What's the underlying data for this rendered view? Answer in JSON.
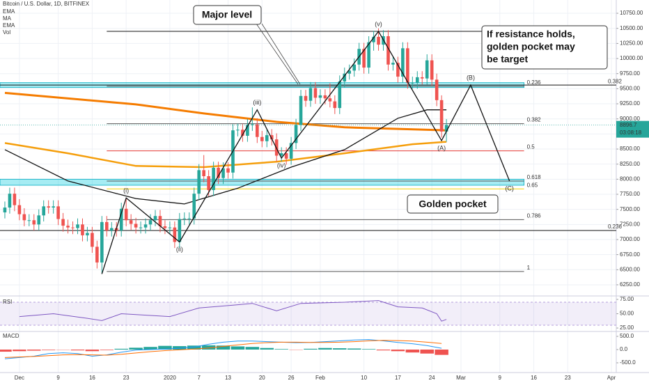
{
  "chart_data": [
    {
      "type": "candlestick",
      "title": "Bitcoin / U.S. Dollar, 1D, BITFINEX",
      "indicators": [
        "EMA",
        "MA",
        "EMA",
        "Vol"
      ],
      "x": [
        "2019-11-28",
        "2019-11-29",
        "2019-11-30",
        "2019-12-01",
        "2019-12-02",
        "2019-12-03",
        "2019-12-04",
        "2019-12-05",
        "2019-12-06",
        "2019-12-07",
        "2019-12-08",
        "2019-12-09",
        "2019-12-10",
        "2019-12-11",
        "2019-12-12",
        "2019-12-13",
        "2019-12-14",
        "2019-12-15",
        "2019-12-16",
        "2019-12-17",
        "2019-12-18",
        "2019-12-19",
        "2019-12-20",
        "2019-12-21",
        "2019-12-22",
        "2019-12-23",
        "2019-12-24",
        "2019-12-25",
        "2019-12-26",
        "2019-12-27",
        "2019-12-28",
        "2019-12-29",
        "2019-12-30",
        "2019-12-31",
        "2020-01-01",
        "2020-01-02",
        "2020-01-03",
        "2020-01-04",
        "2020-01-05",
        "2020-01-06",
        "2020-01-07",
        "2020-01-08",
        "2020-01-09",
        "2020-01-10",
        "2020-01-11",
        "2020-01-12",
        "2020-01-13",
        "2020-01-14",
        "2020-01-15",
        "2020-01-16",
        "2020-01-17",
        "2020-01-18",
        "2020-01-19",
        "2020-01-20",
        "2020-01-21",
        "2020-01-22",
        "2020-01-23",
        "2020-01-24",
        "2020-01-25",
        "2020-01-26",
        "2020-01-27",
        "2020-01-28",
        "2020-01-29",
        "2020-01-30",
        "2020-01-31",
        "2020-02-01",
        "2020-02-02",
        "2020-02-03",
        "2020-02-04",
        "2020-02-05",
        "2020-02-06",
        "2020-02-07",
        "2020-02-08",
        "2020-02-09",
        "2020-02-10",
        "2020-02-11",
        "2020-02-12",
        "2020-02-13",
        "2020-02-14",
        "2020-02-15",
        "2020-02-16",
        "2020-02-17",
        "2020-02-18",
        "2020-02-19",
        "2020-02-20",
        "2020-02-21",
        "2020-02-22",
        "2020-02-23",
        "2020-02-24",
        "2020-02-25",
        "2020-02-26",
        "2020-02-27"
      ],
      "open": [
        7450,
        7530,
        7760,
        7570,
        7420,
        7320,
        7320,
        7250,
        7400,
        7550,
        7530,
        7550,
        7340,
        7230,
        7200,
        7190,
        7250,
        7070,
        7110,
        6880,
        6620,
        7290,
        7150,
        7190,
        7150,
        7510,
        7320,
        7260,
        7200,
        7200,
        7250,
        7320,
        7390,
        7220,
        7190,
        7200,
        6960,
        7340,
        7350,
        7350,
        7760,
        8150,
        8050,
        7820,
        8190,
        8020,
        8180,
        8110,
        8810,
        8820,
        8720,
        8900,
        8910,
        8700,
        8630,
        8730,
        8660,
        8390,
        8430,
        8340,
        8600,
        8900,
        9380,
        9300,
        9510,
        9350,
        9390,
        9340,
        9290,
        9180,
        9620,
        9750,
        9800,
        9900,
        10160,
        9850,
        10270,
        10360,
        10230,
        10370,
        9900,
        9930,
        9700,
        10170,
        9600,
        9600,
        9690,
        9670,
        9970,
        9650,
        9310,
        8790
      ],
      "high": [
        7630,
        7860,
        7860,
        7670,
        7520,
        7420,
        7420,
        7500,
        7650,
        7650,
        7650,
        7650,
        7440,
        7330,
        7300,
        7350,
        7350,
        7210,
        7210,
        6980,
        7390,
        7390,
        7290,
        7290,
        7610,
        7690,
        7420,
        7360,
        7300,
        7350,
        7420,
        7490,
        7490,
        7320,
        7300,
        7300,
        7440,
        7450,
        7450,
        7860,
        8250,
        8400,
        8150,
        8290,
        8290,
        8280,
        8280,
        8910,
        8920,
        8920,
        9000,
        9190,
        9010,
        8800,
        8830,
        8830,
        8760,
        8530,
        8530,
        8700,
        9000,
        9480,
        9480,
        9610,
        9610,
        9490,
        9490,
        9590,
        9390,
        9720,
        9850,
        9900,
        10000,
        10260,
        10260,
        10370,
        10460,
        10500,
        10470,
        10470,
        10030,
        10030,
        10270,
        10270,
        9700,
        9790,
        9790,
        10070,
        10070,
        9750,
        9390,
        8997
      ],
      "low": [
        7350,
        7430,
        7470,
        7320,
        7220,
        7220,
        7150,
        7150,
        7300,
        7430,
        7430,
        7240,
        7130,
        7100,
        7090,
        7090,
        6970,
        6970,
        6780,
        6520,
        6430,
        7050,
        7050,
        7050,
        7050,
        7220,
        7160,
        7100,
        7100,
        7100,
        7150,
        7220,
        7120,
        7090,
        7090,
        6860,
        6860,
        7240,
        7250,
        7250,
        7660,
        7950,
        7720,
        7720,
        7920,
        7920,
        8010,
        8010,
        8710,
        8620,
        8620,
        8800,
        8600,
        8530,
        8530,
        8560,
        8290,
        8290,
        8240,
        8240,
        8500,
        8800,
        9200,
        9200,
        9250,
        9250,
        9240,
        9190,
        9080,
        9080,
        9520,
        9650,
        9700,
        9800,
        9750,
        9750,
        10130,
        10130,
        10130,
        9800,
        9800,
        9600,
        9600,
        9500,
        9500,
        9500,
        9570,
        9570,
        9550,
        9210,
        8690,
        8620
      ],
      "close": [
        7530,
        7760,
        7570,
        7420,
        7320,
        7320,
        7250,
        7400,
        7550,
        7530,
        7550,
        7340,
        7230,
        7200,
        7190,
        7250,
        7070,
        7110,
        6880,
        6620,
        7290,
        7150,
        7190,
        7150,
        7510,
        7320,
        7260,
        7200,
        7200,
        7250,
        7320,
        7390,
        7220,
        7190,
        7200,
        6960,
        7340,
        7350,
        7350,
        7760,
        8150,
        8050,
        7820,
        8190,
        8020,
        8180,
        8110,
        8810,
        8820,
        8720,
        8900,
        8910,
        8700,
        8630,
        8730,
        8660,
        8390,
        8430,
        8340,
        8600,
        8900,
        9380,
        9300,
        9510,
        9350,
        9390,
        9340,
        9290,
        9180,
        9620,
        9750,
        9800,
        9900,
        10160,
        9850,
        10270,
        10360,
        10230,
        10370,
        9900,
        9930,
        9700,
        10170,
        9600,
        9600,
        9690,
        9670,
        9970,
        9650,
        9310,
        8790,
        8897
      ],
      "up_color": "#26a69a",
      "down_color": "#ef5350",
      "xlim": [
        "2019-11-27",
        "2020-04-02"
      ],
      "ylim": [
        6065,
        10970
      ],
      "xticks": [
        {
          "value": "2019-12-01",
          "label": "Dec"
        },
        {
          "value": "2019-12-09",
          "label": "9"
        },
        {
          "value": "2019-12-16",
          "label": "16"
        },
        {
          "value": "2019-12-23",
          "label": "23"
        },
        {
          "value": "2020-01-01",
          "label": "2020"
        },
        {
          "value": "2020-01-07",
          "label": "7"
        },
        {
          "value": "2020-01-13",
          "label": "13"
        },
        {
          "value": "2020-01-20",
          "label": "20"
        },
        {
          "value": "2020-01-26",
          "label": "26"
        },
        {
          "value": "2020-02-01",
          "label": "Feb"
        },
        {
          "value": "2020-02-10",
          "label": "10"
        },
        {
          "value": "2020-02-17",
          "label": "17"
        },
        {
          "value": "2020-02-24",
          "label": "24"
        },
        {
          "value": "2020-03-01",
          "label": "Mar"
        },
        {
          "value": "2020-03-09",
          "label": "9"
        },
        {
          "value": "2020-03-16",
          "label": "16"
        },
        {
          "value": "2020-03-23",
          "label": "23"
        },
        {
          "value": "2020-04-01",
          "label": "Apr"
        }
      ],
      "yticks": [
        {
          "value": 10750,
          "label": "10750.00"
        },
        {
          "value": 10500,
          "label": "10500.00"
        },
        {
          "value": 10250,
          "label": "10250.00"
        },
        {
          "value": 10000,
          "label": "10000.00"
        },
        {
          "value": 9750,
          "label": "9750.00"
        },
        {
          "value": 9500,
          "label": "9500.00"
        },
        {
          "value": 9250,
          "label": "9250.00"
        },
        {
          "value": 9000,
          "label": "9000.00"
        },
        {
          "value": 8750,
          "label": "8750.00"
        },
        {
          "value": 8500,
          "label": "8500.00"
        },
        {
          "value": 8250,
          "label": "8250.00"
        },
        {
          "value": 8000,
          "label": "8000.00"
        },
        {
          "value": 7750,
          "label": "7750.00"
        },
        {
          "value": 7500,
          "label": "7500.00"
        },
        {
          "value": 7250,
          "label": "7250.00"
        },
        {
          "value": 7000,
          "label": "7000.00"
        },
        {
          "value": 6750,
          "label": "6750.00"
        },
        {
          "value": 6500,
          "label": "6500.00"
        },
        {
          "value": 6250,
          "label": "6250.00"
        }
      ],
      "grid": true,
      "overlays": [
        {
          "color": "#f57c00",
          "width": 3,
          "x": [
            "2019-11-28",
            "2019-12-25",
            "2020-01-08",
            "2020-01-23",
            "2020-02-06",
            "2020-02-27"
          ],
          "values": [
            9430,
            9240,
            9090,
            8950,
            8860,
            8810
          ]
        },
        {
          "color": "#f59e0b",
          "width": 2.5,
          "x": [
            "2019-11-28",
            "2019-12-11",
            "2019-12-25",
            "2020-01-08",
            "2020-01-23",
            "2020-02-06",
            "2020-02-20",
            "2020-02-27"
          ],
          "values": [
            8600,
            8430,
            8220,
            8200,
            8290,
            8430,
            8580,
            8620
          ]
        },
        {
          "color": "#111111",
          "width": 1.3,
          "x": [
            "2019-11-28",
            "2019-12-11",
            "2019-12-25",
            "2020-01-04",
            "2020-01-15",
            "2020-01-26",
            "2020-02-06",
            "2020-02-17",
            "2020-02-23",
            "2020-02-27"
          ],
          "values": [
            8490,
            7970,
            7680,
            7590,
            7850,
            8200,
            8490,
            9010,
            9150,
            9150
          ]
        }
      ],
      "zones": [
        {
          "from": 9520,
          "to": 9600,
          "x": [
            "2019-11-27",
            "2020-03-14"
          ]
        },
        {
          "from": 7900,
          "to": 8000,
          "x": [
            "2019-11-27",
            "2020-03-14"
          ]
        }
      ],
      "levels": [
        {
          "value": 10450,
          "color": "#111111",
          "x": [
            "2019-12-19",
            "2020-03-13"
          ]
        },
        {
          "value": 9560,
          "label": 0.382,
          "color": "#111111",
          "x": [
            "2019-11-27",
            "2020-04-02"
          ]
        },
        {
          "value": 9540,
          "label": 0.236,
          "color": "#555555",
          "x": [
            "2019-12-19",
            "2020-03-14"
          ]
        },
        {
          "value": 8920,
          "label": 0.382,
          "color": "#555555",
          "x": [
            "2019-12-19",
            "2020-03-14"
          ]
        },
        {
          "value": 8470,
          "label": 0.5,
          "color": "#e53935",
          "x": [
            "2019-12-19",
            "2020-03-14"
          ]
        },
        {
          "value": 7970,
          "label": 0.618,
          "color": "#555555",
          "x": [
            "2019-12-19",
            "2020-03-14"
          ]
        },
        {
          "value": 7840,
          "label": 0.65,
          "color": "#f5d000",
          "x": [
            "2019-12-19",
            "2020-03-14"
          ]
        },
        {
          "value": 7330,
          "label": 0.786,
          "color": "#555555",
          "x": [
            "2019-12-19",
            "2020-03-14"
          ]
        },
        {
          "value": 6470,
          "label": 1,
          "color": "#555555",
          "x": [
            "2019-12-19",
            "2020-03-14"
          ]
        },
        {
          "value": 7150,
          "label": 0.236,
          "color": "#111111",
          "x": [
            "2019-11-27",
            "2020-04-02"
          ]
        }
      ],
      "waves": [
        {
          "label": null,
          "x": "2019-12-18",
          "value": 6430
        },
        {
          "label": "(i)",
          "x": "2019-12-23",
          "value": 7690
        },
        {
          "label": "(ii)",
          "x": "2020-01-03",
          "value": 6960
        },
        {
          "label": "(iii)",
          "x": "2020-01-19",
          "value": 9150
        },
        {
          "label": "(iv)",
          "x": "2020-01-24",
          "value": 8350
        },
        {
          "label": "(v)",
          "x": "2020-02-13",
          "value": 10450
        },
        {
          "label": "(A)",
          "x": "2020-02-26",
          "value": 8640
        },
        {
          "label": "(B)",
          "x": "2020-03-03",
          "value": 9560
        },
        {
          "label": "(C)",
          "x": "2020-03-11",
          "value": 7970
        }
      ],
      "annotations": {
        "major": "Major level",
        "target": [
          "If resistance holds,",
          "golden pocket may",
          "be target"
        ],
        "pocket": "Golden pocket"
      },
      "last_price": 8896.7,
      "countdown": "03:08:18",
      "last_color": "#26a69a"
    },
    {
      "type": "line",
      "title": "RSI",
      "color": "#7e57c2",
      "x": [
        "2019-12-01",
        "2019-12-08",
        "2019-12-15",
        "2019-12-18",
        "2019-12-22",
        "2020-01-01",
        "2020-01-07",
        "2020-01-14",
        "2020-01-18",
        "2020-01-23",
        "2020-01-28",
        "2020-02-06",
        "2020-02-13",
        "2020-02-17",
        "2020-02-22",
        "2020-02-25",
        "2020-02-26",
        "2020-02-27"
      ],
      "values": [
        45,
        50,
        42,
        38,
        50,
        45,
        60,
        65,
        68,
        55,
        68,
        70,
        73,
        62,
        60,
        50,
        37,
        40
      ],
      "band": [
        30,
        70
      ],
      "ylim": [
        19,
        81
      ],
      "yticks": [
        {
          "value": 75,
          "label": "75.00"
        },
        {
          "value": 50,
          "label": "50.00"
        },
        {
          "value": 25,
          "label": "25.00"
        }
      ]
    },
    {
      "type": "bar",
      "title": "MACD",
      "up_color": "#26a69a",
      "down_color": "#ef5350",
      "x": [
        "2019-11-28",
        "2019-12-01",
        "2019-12-04",
        "2019-12-07",
        "2019-12-10",
        "2019-12-13",
        "2019-12-16",
        "2019-12-19",
        "2019-12-22",
        "2019-12-25",
        "2019-12-28",
        "2019-12-31",
        "2020-01-03",
        "2020-01-06",
        "2020-01-09",
        "2020-01-12",
        "2020-01-15",
        "2020-01-18",
        "2020-01-21",
        "2020-01-24",
        "2020-01-27",
        "2020-01-30",
        "2020-02-02",
        "2020-02-05",
        "2020-02-08",
        "2020-02-11",
        "2020-02-14",
        "2020-02-17",
        "2020-02-20",
        "2020-02-23",
        "2020-02-26"
      ],
      "values": [
        -80,
        -60,
        -40,
        -20,
        -10,
        -30,
        -60,
        -20,
        30,
        70,
        100,
        140,
        130,
        150,
        160,
        150,
        120,
        100,
        60,
        20,
        -10,
        30,
        60,
        50,
        40,
        20,
        -30,
        -60,
        -110,
        -150,
        -200
      ],
      "series": [
        {
          "color": "#2196f3",
          "values": [
            -350,
            -300,
            -250,
            -150,
            -120,
            -150,
            -250,
            -200,
            -100,
            -20,
            0,
            20,
            50,
            100,
            200,
            280,
            320,
            320,
            300,
            280,
            260,
            270,
            300,
            330,
            360,
            380,
            330,
            270,
            220,
            150,
            50
          ]
        },
        {
          "color": "#ff6d00",
          "values": [
            -300,
            -280,
            -260,
            -230,
            -200,
            -190,
            -200,
            -210,
            -180,
            -130,
            -80,
            -40,
            -10,
            20,
            60,
            120,
            180,
            230,
            260,
            280,
            280,
            270,
            270,
            280,
            300,
            330,
            350,
            340,
            320,
            280,
            230
          ]
        }
      ],
      "ylim": [
        -868,
        684
      ],
      "yticks": [
        {
          "value": 500,
          "label": "500.0"
        },
        {
          "value": 0,
          "label": "0.0"
        },
        {
          "value": -500,
          "label": "-500.0"
        }
      ]
    }
  ]
}
